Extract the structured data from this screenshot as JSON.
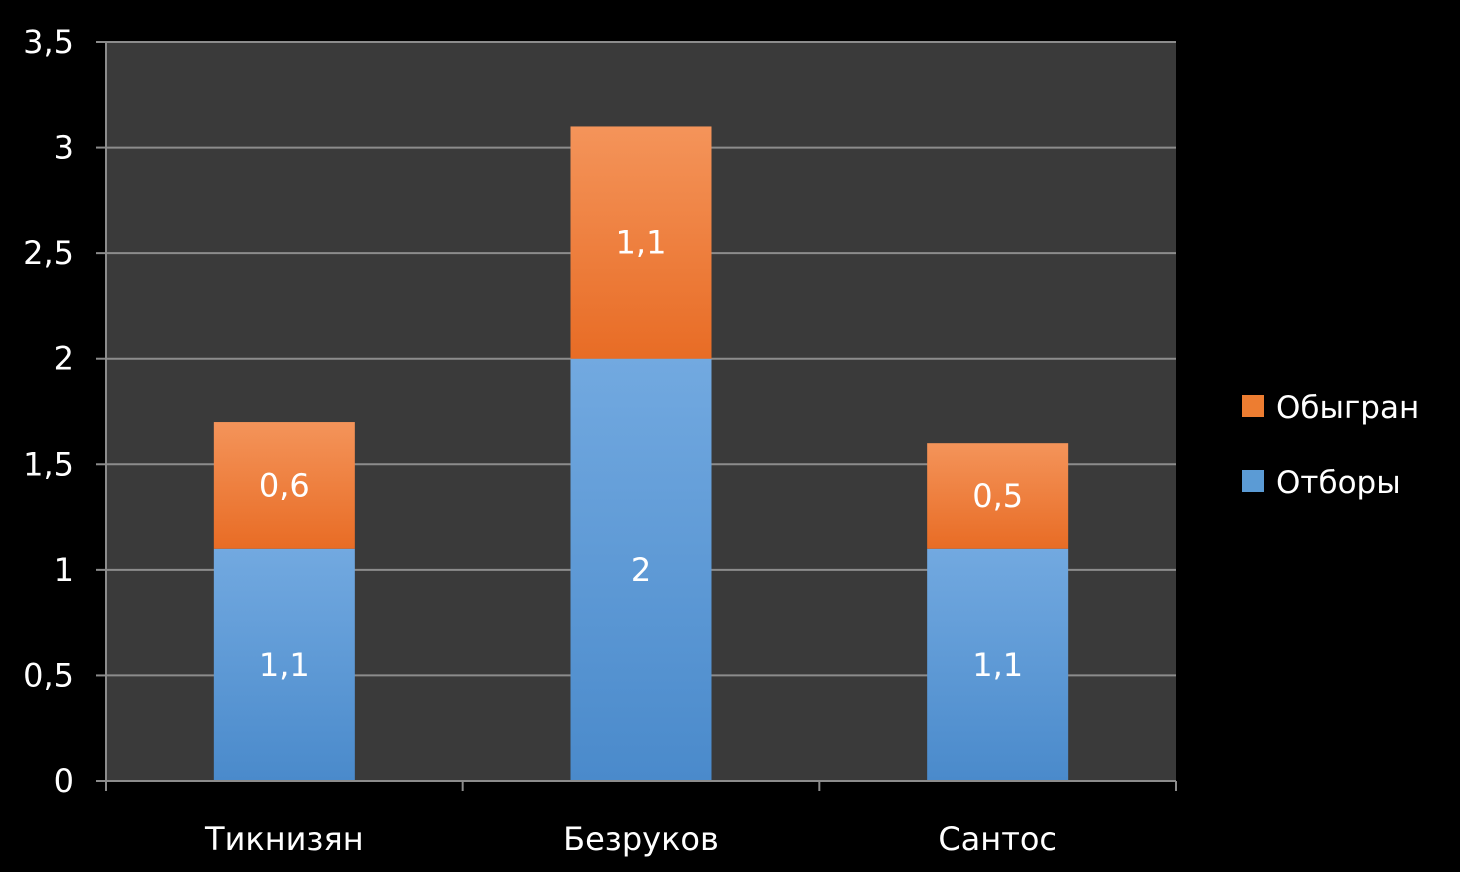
{
  "chart_data": {
    "type": "bar",
    "stacked": true,
    "categories": [
      "Тикнизян",
      "Безруков",
      "Сантос"
    ],
    "series": [
      {
        "name": "Отборы",
        "values": [
          1.1,
          2,
          1.1
        ],
        "value_labels": [
          "1,1",
          "2",
          "1,1"
        ],
        "color": "#5b9bd5"
      },
      {
        "name": "Обыгран",
        "values": [
          0.6,
          1.1,
          0.5
        ],
        "value_labels": [
          "0,6",
          "1,1",
          "0,5"
        ],
        "color": "#ed7d31"
      }
    ],
    "ylim": [
      0,
      3.5
    ],
    "y_ticks": [
      0,
      0.5,
      1,
      1.5,
      2,
      2.5,
      3,
      3.5
    ],
    "y_tick_labels": [
      "0",
      "0,5",
      "1",
      "1,5",
      "2",
      "2,5",
      "3",
      "3,5"
    ],
    "grid": true,
    "legend": {
      "position": "right",
      "entries": [
        "Обыгран",
        "Отборы"
      ]
    },
    "colors": {
      "background": "#000000",
      "plot_area": "#3a3a3a",
      "gridline": "#8c8c8c",
      "text": "#ffffff"
    }
  }
}
